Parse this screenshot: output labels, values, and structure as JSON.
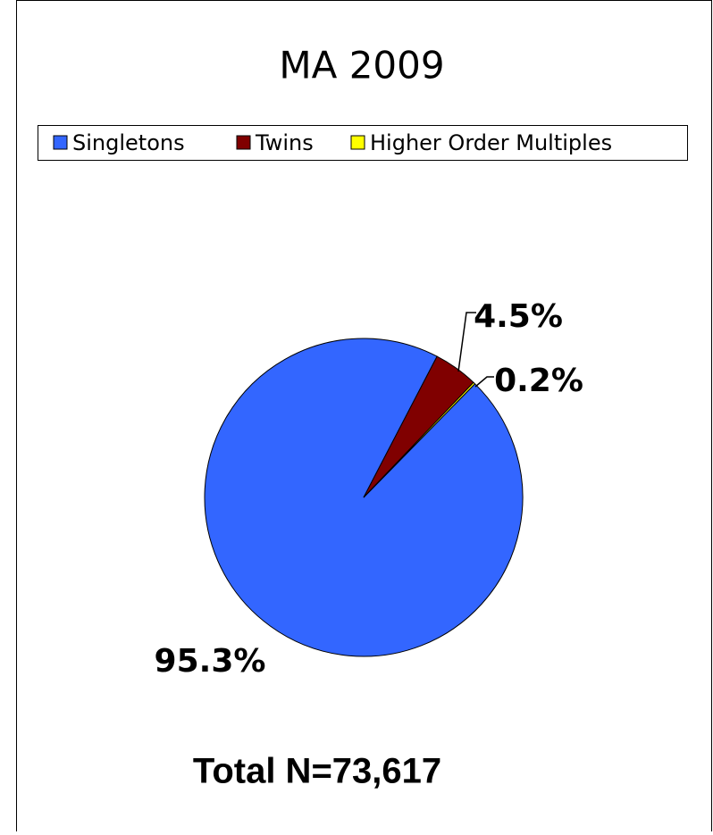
{
  "chart_data": {
    "type": "pie",
    "title": "MA 2009",
    "categories": [
      "Singletons",
      "Twins",
      "Higher Order Multiples"
    ],
    "values": [
      95.3,
      4.5,
      0.2
    ],
    "value_labels": [
      "95.3%",
      "4.5%",
      "0.2%"
    ],
    "colors": [
      "#3366ff",
      "#800000",
      "#ffff00"
    ],
    "legend": "top",
    "annotation": "Total N=73,617"
  }
}
